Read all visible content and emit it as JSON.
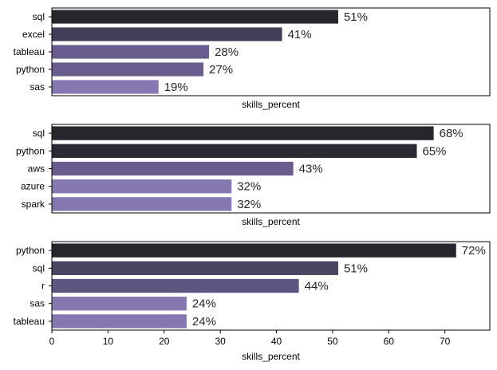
{
  "chart_data": [
    {
      "type": "bar",
      "orientation": "horizontal",
      "categories": [
        "sql",
        "excel",
        "tableau",
        "python",
        "sas"
      ],
      "values": [
        51,
        41,
        28,
        27,
        19
      ],
      "data_labels": [
        "51%",
        "41%",
        "28%",
        "27%",
        "19%"
      ],
      "xlabel": "skills_percent",
      "xlim": [
        0,
        78
      ],
      "show_xticks": false,
      "colors": [
        "#27262d",
        "#433e57",
        "#6a5d8d",
        "#6a5d8d",
        "#8578b0"
      ]
    },
    {
      "type": "bar",
      "orientation": "horizontal",
      "categories": [
        "sql",
        "python",
        "aws",
        "azure",
        "spark"
      ],
      "values": [
        68,
        65,
        43,
        32,
        32
      ],
      "data_labels": [
        "68%",
        "65%",
        "43%",
        "32%",
        "32%"
      ],
      "xlabel": "skills_percent",
      "xlim": [
        0,
        78
      ],
      "show_xticks": false,
      "colors": [
        "#27262d",
        "#2b2a33",
        "#6a5d8d",
        "#8578b0",
        "#8578b0"
      ]
    },
    {
      "type": "bar",
      "orientation": "horizontal",
      "categories": [
        "python",
        "sql",
        "r",
        "sas",
        "tableau"
      ],
      "values": [
        72,
        51,
        44,
        24,
        24
      ],
      "data_labels": [
        "72%",
        "51%",
        "44%",
        "24%",
        "24%"
      ],
      "xlabel": "skills_percent",
      "xlim": [
        0,
        78
      ],
      "show_xticks": true,
      "xticks": [
        0,
        10,
        20,
        30,
        40,
        50,
        60,
        70
      ],
      "xtick_labels": [
        "0",
        "10",
        "20",
        "30",
        "40",
        "50",
        "60",
        "70"
      ],
      "colors": [
        "#27262d",
        "#4a4560",
        "#5e5580",
        "#8578b0",
        "#8578b0"
      ]
    }
  ]
}
